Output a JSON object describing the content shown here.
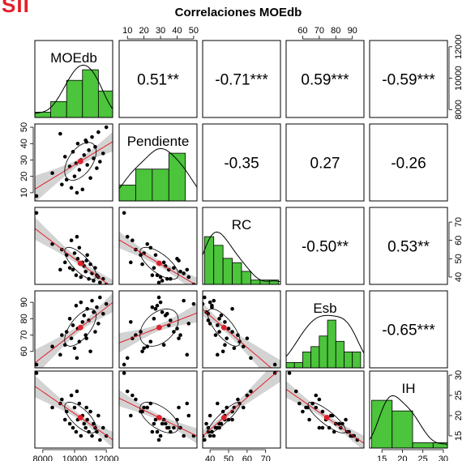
{
  "logo_text": "SII",
  "chart_data": {
    "type": "scatter",
    "title": "Correlaciones MOEdb",
    "variables": [
      "MOEdb",
      "Pendiente",
      "RC",
      "Esb",
      "IH"
    ],
    "ranges": {
      "MOEdb": [
        7500,
        12400
      ],
      "Pendiente": [
        5,
        52
      ],
      "RC": [
        36,
        78
      ],
      "Esb": [
        50,
        97
      ],
      "IH": [
        12,
        31
      ]
    },
    "ticks": {
      "MOEdb": [
        8000,
        10000,
        12000
      ],
      "Pendiente": [
        10,
        20,
        30,
        40,
        50
      ],
      "RC": [
        40,
        50,
        60,
        70
      ],
      "Esb": [
        60,
        70,
        80,
        90
      ],
      "IH": [
        15,
        20,
        25,
        30
      ]
    },
    "top_axis_vars": [
      "Pendiente",
      "Esb"
    ],
    "bottom_axis_vars": [
      "MOEdb",
      "RC",
      "IH"
    ],
    "left_axis_vars": [
      "Pendiente",
      "Esb"
    ],
    "right_axis_vars": [
      "MOEdb",
      "RC",
      "IH"
    ],
    "correlations": [
      {
        "row": 0,
        "col": 1,
        "label": "0.51**"
      },
      {
        "row": 0,
        "col": 2,
        "label": "-0.71***"
      },
      {
        "row": 0,
        "col": 3,
        "label": "0.59***"
      },
      {
        "row": 0,
        "col": 4,
        "label": "-0.59***"
      },
      {
        "row": 1,
        "col": 2,
        "label": "-0.35"
      },
      {
        "row": 1,
        "col": 3,
        "label": "0.27"
      },
      {
        "row": 1,
        "col": 4,
        "label": "-0.26"
      },
      {
        "row": 2,
        "col": 3,
        "label": "-0.50**"
      },
      {
        "row": 2,
        "col": 4,
        "label": "0.53**"
      },
      {
        "row": 3,
        "col": 4,
        "label": "-0.65***"
      }
    ],
    "histograms": {
      "MOEdb": {
        "breaks": [
          7500,
          8500,
          9500,
          10500,
          11500,
          12500
        ],
        "counts": [
          1,
          3,
          7,
          9,
          5
        ]
      },
      "Pendiente": {
        "breaks": [
          5,
          15,
          25,
          35,
          45,
          55
        ],
        "counts": [
          4,
          8,
          8,
          12,
          0
        ]
      },
      "RC": {
        "breaks": [
          37,
          42,
          47,
          52,
          57,
          62,
          67,
          72,
          77
        ],
        "counts": [
          11,
          9,
          6,
          5,
          3,
          1,
          1,
          1
        ]
      },
      "Esb": {
        "breaks": [
          50,
          55,
          60,
          65,
          70,
          75,
          80,
          85,
          90,
          95
        ],
        "counts": [
          1,
          1,
          3,
          4,
          6,
          9,
          5,
          3,
          3
        ]
      },
      "IH": {
        "breaks": [
          12.5,
          17.5,
          22.5,
          27.5,
          32.5
        ],
        "counts": [
          9,
          7,
          1,
          1
        ]
      }
    },
    "observations": [
      {
        "MOEdb": 7600,
        "Pendiente": 8,
        "RC": 75,
        "Esb": 52,
        "IH": 30.5
      },
      {
        "MOEdb": 8600,
        "Pendiente": 22,
        "RC": 58,
        "Esb": 63,
        "IH": 22
      },
      {
        "MOEdb": 9200,
        "Pendiente": 15,
        "RC": 55,
        "Esb": 70,
        "IH": 24
      },
      {
        "MOEdb": 9400,
        "Pendiente": 32,
        "RC": 48,
        "Esb": 64,
        "IH": 19
      },
      {
        "MOEdb": 9500,
        "Pendiente": 18,
        "RC": 52,
        "Esb": 72,
        "IH": 21
      },
      {
        "MOEdb": 9700,
        "Pendiente": 26,
        "RC": 45,
        "Esb": 80,
        "IH": 18
      },
      {
        "MOEdb": 9800,
        "Pendiente": 13,
        "RC": 60,
        "Esb": 68,
        "IH": 25
      },
      {
        "MOEdb": 9900,
        "Pendiente": 35,
        "RC": 44,
        "Esb": 76,
        "IH": 17
      },
      {
        "MOEdb": 10000,
        "Pendiente": 20,
        "RC": 53,
        "Esb": 62,
        "IH": 22
      },
      {
        "MOEdb": 10100,
        "Pendiente": 28,
        "RC": 41,
        "Esb": 88,
        "IH": 16
      },
      {
        "MOEdb": 10200,
        "Pendiente": 40,
        "RC": 50,
        "Esb": 74,
        "IH": 19
      },
      {
        "MOEdb": 10300,
        "Pendiente": 24,
        "RC": 56,
        "Esb": 66,
        "IH": 23
      },
      {
        "MOEdb": 10400,
        "Pendiente": 30,
        "RC": 40,
        "Esb": 90,
        "IH": 15
      },
      {
        "MOEdb": 10500,
        "Pendiente": 12,
        "RC": 48,
        "Esb": 78,
        "IH": 20
      },
      {
        "MOEdb": 10600,
        "Pendiente": 33,
        "RC": 46,
        "Esb": 82,
        "IH": 18
      },
      {
        "MOEdb": 10700,
        "Pendiente": 42,
        "RC": 43,
        "Esb": 70,
        "IH": 17
      },
      {
        "MOEdb": 10800,
        "Pendiente": 27,
        "RC": 52,
        "Esb": 86,
        "IH": 19
      },
      {
        "MOEdb": 10900,
        "Pendiente": 36,
        "RC": 39,
        "Esb": 79,
        "IH": 16
      },
      {
        "MOEdb": 11000,
        "Pendiente": 19,
        "RC": 47,
        "Esb": 60,
        "IH": 21
      },
      {
        "MOEdb": 11100,
        "Pendiente": 44,
        "RC": 42,
        "Esb": 91,
        "IH": 15
      },
      {
        "MOEdb": 11200,
        "Pendiente": 31,
        "RC": 38,
        "Esb": 84,
        "IH": 18
      },
      {
        "MOEdb": 11300,
        "Pendiente": 38,
        "RC": 45,
        "Esb": 72,
        "IH": 17
      },
      {
        "MOEdb": 11400,
        "Pendiente": 25,
        "RC": 41,
        "Esb": 87,
        "IH": 16
      },
      {
        "MOEdb": 11500,
        "Pendiente": 47,
        "RC": 40,
        "Esb": 77,
        "IH": 20
      },
      {
        "MOEdb": 11600,
        "Pendiente": 29,
        "RC": 37,
        "Esb": 93,
        "IH": 14
      },
      {
        "MOEdb": 11800,
        "Pendiente": 34,
        "RC": 39,
        "Esb": 83,
        "IH": 17
      },
      {
        "MOEdb": 12000,
        "Pendiente": 50,
        "RC": 36,
        "Esb": 89,
        "IH": 15
      },
      {
        "MOEdb": 9100,
        "Pendiente": 46,
        "RC": 44,
        "Esb": 58,
        "IH": 23
      },
      {
        "MOEdb": 10150,
        "Pendiente": 10,
        "RC": 62,
        "Esb": 56,
        "IH": 26
      },
      {
        "MOEdb": 10750,
        "Pendiente": 41,
        "RC": 49,
        "Esb": 68,
        "IH": 22
      }
    ]
  }
}
